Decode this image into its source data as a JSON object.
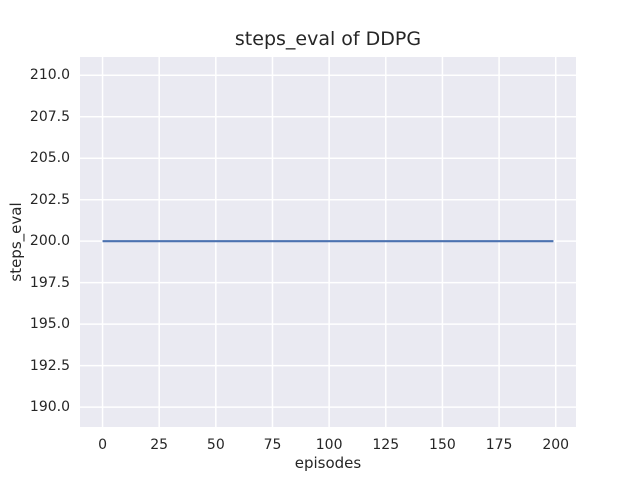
{
  "figure": {
    "background": "#ffffff"
  },
  "chart_data": {
    "type": "line",
    "title": "steps_eval of DDPG",
    "xlabel": "episodes",
    "ylabel": "steps_eval",
    "xlim": [
      -9.95,
      208.95
    ],
    "ylim": [
      188.8,
      211.1
    ],
    "xticks": [
      0,
      25,
      50,
      75,
      100,
      125,
      150,
      175,
      200
    ],
    "xtick_labels": [
      "0",
      "25",
      "50",
      "75",
      "100",
      "125",
      "150",
      "175",
      "200"
    ],
    "yticks": [
      190.0,
      192.5,
      195.0,
      197.5,
      200.0,
      202.5,
      205.0,
      207.5,
      210.0
    ],
    "ytick_labels": [
      "190.0",
      "192.5",
      "195.0",
      "197.5",
      "200.0",
      "202.5",
      "205.0",
      "207.5",
      "210.0"
    ],
    "grid": true,
    "legend": false,
    "plot_background": "#eaeaf2",
    "grid_color": "#ffffff",
    "text_color": "#262626",
    "series": [
      {
        "name": "steps_eval",
        "color": "#4c72b0",
        "x": [
          0,
          199
        ],
        "y": [
          200,
          200
        ],
        "description": "constant horizontal line at steps_eval = 200 across episodes 0 to 199"
      }
    ]
  }
}
